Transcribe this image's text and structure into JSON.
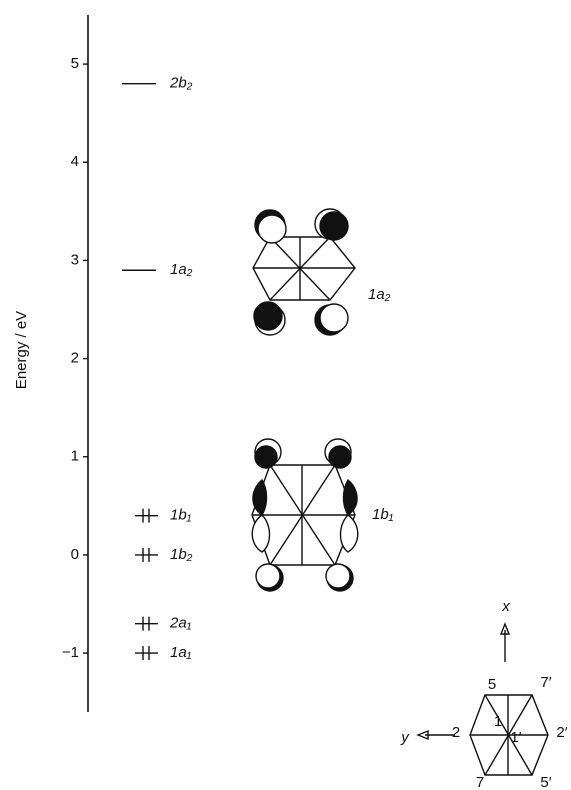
{
  "chart_data": {
    "type": "energy-levels",
    "y_label": "Energy / eV",
    "ylim": [
      -1.6,
      5.5
    ],
    "yticks": [
      5,
      4,
      3,
      2,
      1,
      0,
      {
        "value": -1,
        "label": "−1"
      }
    ],
    "categories": [
      "2b₂",
      "1a₂",
      "1b₁",
      "1b₂",
      "2a₁",
      "1a₁"
    ],
    "values": [
      4.8,
      2.9,
      0.4,
      0.0,
      -0.7,
      -1.0
    ],
    "electrons": [
      0,
      0,
      2,
      2,
      2,
      2
    ],
    "color": "#111111",
    "annotations": {
      "orbital_1a2": "1a₂",
      "orbital_1b1": "1b₁",
      "axis_x": "x",
      "axis_y": "y",
      "atoms": [
        "5",
        "7′",
        "2",
        "2′",
        "1",
        "1′",
        "7",
        "5′"
      ]
    }
  }
}
